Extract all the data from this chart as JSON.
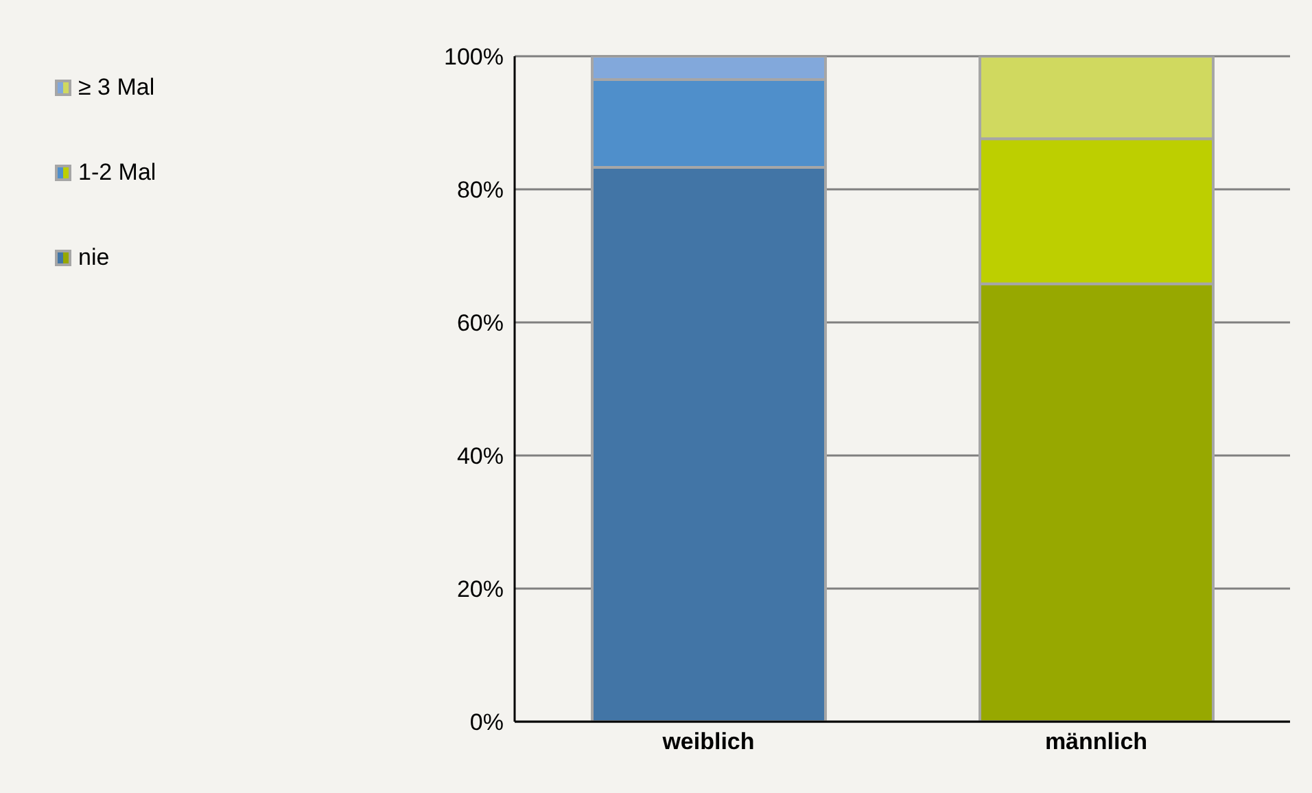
{
  "chart_data": {
    "type": "bar",
    "stacked": true,
    "categories": [
      "weiblich",
      "männlich"
    ],
    "series": [
      {
        "name": "nie",
        "colors": [
          "#4275a6",
          "#97a800"
        ],
        "values": [
          83.3,
          65.8
        ]
      },
      {
        "name": "1-2 Mal",
        "colors": [
          "#4f8fcb",
          "#bdcf00"
        ],
        "values": [
          13.2,
          21.8
        ]
      },
      {
        "name": "≥ 3 Mal",
        "colors": [
          "#82a8db",
          "#d0d95f"
        ],
        "values": [
          3.5,
          12.4
        ]
      }
    ],
    "ylim": [
      0,
      100
    ],
    "yticks": [
      {
        "value": 0,
        "label": "0%"
      },
      {
        "value": 20,
        "label": "20%"
      },
      {
        "value": 40,
        "label": "40%"
      },
      {
        "value": 60,
        "label": "60%"
      },
      {
        "value": 80,
        "label": "80%"
      },
      {
        "value": 100,
        "label": "100%"
      }
    ],
    "grid": "y",
    "legend": "top left"
  }
}
